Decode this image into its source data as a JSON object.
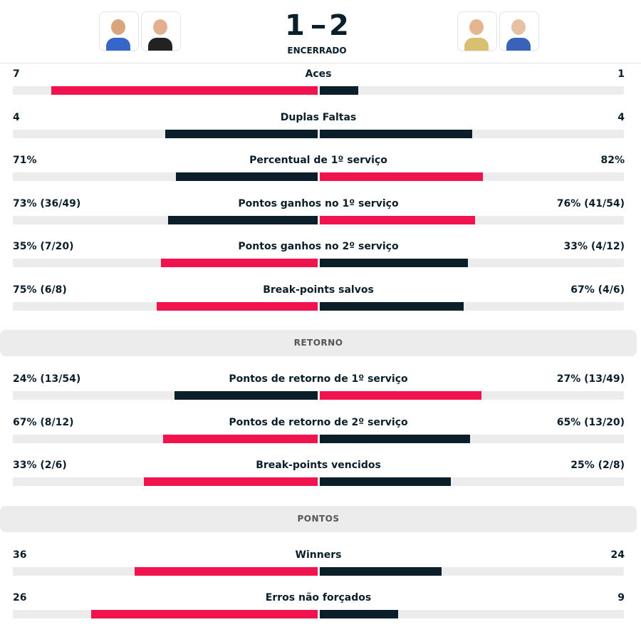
{
  "header": {
    "score": {
      "home": "1",
      "away": "2"
    },
    "status": "ENCERRADO"
  },
  "sections": [
    {
      "rows": [
        {
          "label": "Aces",
          "home": {
            "label": "7",
            "value": 7
          },
          "away": {
            "label": "1",
            "value": 1
          }
        },
        {
          "label": "Duplas Faltas",
          "home": {
            "label": "4",
            "value": 4
          },
          "away": {
            "label": "4",
            "value": 4
          }
        },
        {
          "label": "Percentual de 1º serviço",
          "home": {
            "label": "71%",
            "value": 71
          },
          "away": {
            "label": "82%",
            "value": 82
          }
        },
        {
          "label": "Pontos ganhos no 1º serviço",
          "home": {
            "label": "73% (36/49)",
            "value": 73
          },
          "away": {
            "label": "76% (41/54)",
            "value": 76
          }
        },
        {
          "label": "Pontos ganhos no 2º serviço",
          "home": {
            "label": "35% (7/20)",
            "value": 35
          },
          "away": {
            "label": "33% (4/12)",
            "value": 33
          }
        },
        {
          "label": "Break-points salvos",
          "home": {
            "label": "75% (6/8)",
            "value": 75
          },
          "away": {
            "label": "67% (4/6)",
            "value": 67
          }
        }
      ]
    },
    {
      "title": "RETORNO",
      "rows": [
        {
          "label": "Pontos de retorno de 1º serviço",
          "home": {
            "label": "24% (13/54)",
            "value": 24
          },
          "away": {
            "label": "27% (13/49)",
            "value": 27
          }
        },
        {
          "label": "Pontos de retorno de 2º serviço",
          "home": {
            "label": "67% (8/12)",
            "value": 67
          },
          "away": {
            "label": "65% (13/20)",
            "value": 65
          }
        },
        {
          "label": "Break-points vencidos",
          "home": {
            "label": "33% (2/6)",
            "value": 33
          },
          "away": {
            "label": "25% (2/8)",
            "value": 25
          }
        }
      ]
    },
    {
      "title": "PONTOS",
      "rows": [
        {
          "label": "Winners",
          "home": {
            "label": "36",
            "value": 36
          },
          "away": {
            "label": "24",
            "value": 24
          }
        },
        {
          "label": "Erros não forçados",
          "home": {
            "label": "26",
            "value": 26
          },
          "away": {
            "label": "9",
            "value": 9
          }
        }
      ]
    }
  ]
}
